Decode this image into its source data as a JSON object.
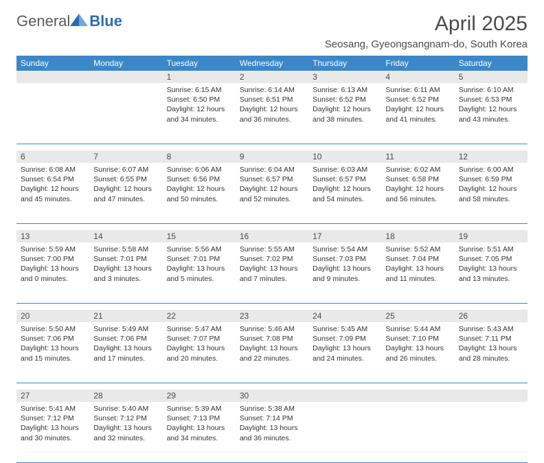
{
  "logo": {
    "text1": "General",
    "text2": "Blue"
  },
  "title": "April 2025",
  "location": "Seosang, Gyeongsangnam-do, South Korea",
  "colors": {
    "header_bg": "#3b87c8",
    "header_text": "#ffffff",
    "daynum_bg": "#e9e9e9",
    "border": "#3b87c8",
    "text": "#333333",
    "title_text": "#4a4a4a"
  },
  "day_headers": [
    "Sunday",
    "Monday",
    "Tuesday",
    "Wednesday",
    "Thursday",
    "Friday",
    "Saturday"
  ],
  "weeks": [
    [
      null,
      null,
      {
        "n": "1",
        "sr": "6:15 AM",
        "ss": "6:50 PM",
        "dl": "12 hours and 34 minutes."
      },
      {
        "n": "2",
        "sr": "6:14 AM",
        "ss": "6:51 PM",
        "dl": "12 hours and 36 minutes."
      },
      {
        "n": "3",
        "sr": "6:13 AM",
        "ss": "6:52 PM",
        "dl": "12 hours and 38 minutes."
      },
      {
        "n": "4",
        "sr": "6:11 AM",
        "ss": "6:52 PM",
        "dl": "12 hours and 41 minutes."
      },
      {
        "n": "5",
        "sr": "6:10 AM",
        "ss": "6:53 PM",
        "dl": "12 hours and 43 minutes."
      }
    ],
    [
      {
        "n": "6",
        "sr": "6:08 AM",
        "ss": "6:54 PM",
        "dl": "12 hours and 45 minutes."
      },
      {
        "n": "7",
        "sr": "6:07 AM",
        "ss": "6:55 PM",
        "dl": "12 hours and 47 minutes."
      },
      {
        "n": "8",
        "sr": "6:06 AM",
        "ss": "6:56 PM",
        "dl": "12 hours and 50 minutes."
      },
      {
        "n": "9",
        "sr": "6:04 AM",
        "ss": "6:57 PM",
        "dl": "12 hours and 52 minutes."
      },
      {
        "n": "10",
        "sr": "6:03 AM",
        "ss": "6:57 PM",
        "dl": "12 hours and 54 minutes."
      },
      {
        "n": "11",
        "sr": "6:02 AM",
        "ss": "6:58 PM",
        "dl": "12 hours and 56 minutes."
      },
      {
        "n": "12",
        "sr": "6:00 AM",
        "ss": "6:59 PM",
        "dl": "12 hours and 58 minutes."
      }
    ],
    [
      {
        "n": "13",
        "sr": "5:59 AM",
        "ss": "7:00 PM",
        "dl": "13 hours and 0 minutes."
      },
      {
        "n": "14",
        "sr": "5:58 AM",
        "ss": "7:01 PM",
        "dl": "13 hours and 3 minutes."
      },
      {
        "n": "15",
        "sr": "5:56 AM",
        "ss": "7:01 PM",
        "dl": "13 hours and 5 minutes."
      },
      {
        "n": "16",
        "sr": "5:55 AM",
        "ss": "7:02 PM",
        "dl": "13 hours and 7 minutes."
      },
      {
        "n": "17",
        "sr": "5:54 AM",
        "ss": "7:03 PM",
        "dl": "13 hours and 9 minutes."
      },
      {
        "n": "18",
        "sr": "5:52 AM",
        "ss": "7:04 PM",
        "dl": "13 hours and 11 minutes."
      },
      {
        "n": "19",
        "sr": "5:51 AM",
        "ss": "7:05 PM",
        "dl": "13 hours and 13 minutes."
      }
    ],
    [
      {
        "n": "20",
        "sr": "5:50 AM",
        "ss": "7:06 PM",
        "dl": "13 hours and 15 minutes."
      },
      {
        "n": "21",
        "sr": "5:49 AM",
        "ss": "7:06 PM",
        "dl": "13 hours and 17 minutes."
      },
      {
        "n": "22",
        "sr": "5:47 AM",
        "ss": "7:07 PM",
        "dl": "13 hours and 20 minutes."
      },
      {
        "n": "23",
        "sr": "5:46 AM",
        "ss": "7:08 PM",
        "dl": "13 hours and 22 minutes."
      },
      {
        "n": "24",
        "sr": "5:45 AM",
        "ss": "7:09 PM",
        "dl": "13 hours and 24 minutes."
      },
      {
        "n": "25",
        "sr": "5:44 AM",
        "ss": "7:10 PM",
        "dl": "13 hours and 26 minutes."
      },
      {
        "n": "26",
        "sr": "5:43 AM",
        "ss": "7:11 PM",
        "dl": "13 hours and 28 minutes."
      }
    ],
    [
      {
        "n": "27",
        "sr": "5:41 AM",
        "ss": "7:12 PM",
        "dl": "13 hours and 30 minutes."
      },
      {
        "n": "28",
        "sr": "5:40 AM",
        "ss": "7:12 PM",
        "dl": "13 hours and 32 minutes."
      },
      {
        "n": "29",
        "sr": "5:39 AM",
        "ss": "7:13 PM",
        "dl": "13 hours and 34 minutes."
      },
      {
        "n": "30",
        "sr": "5:38 AM",
        "ss": "7:14 PM",
        "dl": "13 hours and 36 minutes."
      },
      null,
      null,
      null
    ]
  ],
  "labels": {
    "sunrise": "Sunrise:",
    "sunset": "Sunset:",
    "daylight": "Daylight:"
  }
}
